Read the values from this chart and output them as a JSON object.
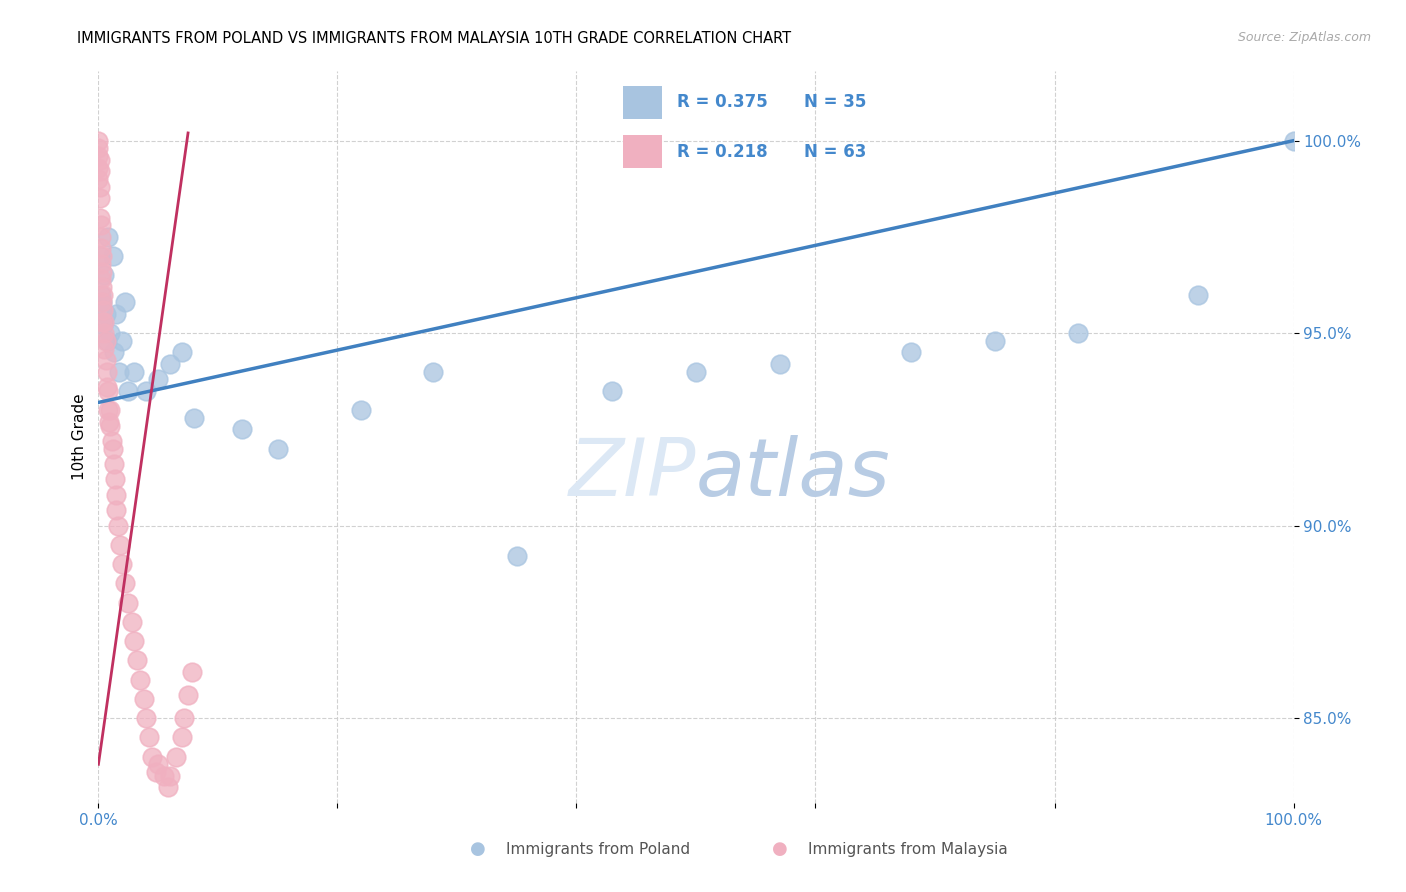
{
  "title": "IMMIGRANTS FROM POLAND VS IMMIGRANTS FROM MALAYSIA 10TH GRADE CORRELATION CHART",
  "source": "Source: ZipAtlas.com",
  "ylabel": "10th Grade",
  "blue_color": "#a8c4e0",
  "pink_color": "#f0b0c0",
  "blue_line_color": "#4080c0",
  "pink_line_color": "#c03060",
  "legend_blue_R": "R = 0.375",
  "legend_blue_N": "N = 35",
  "legend_pink_R": "R = 0.218",
  "legend_pink_N": "N = 63",
  "legend_label_blue": "Immigrants from Poland",
  "legend_label_pink": "Immigrants from Malaysia",
  "x_range": [
    0.0,
    1.0
  ],
  "y_range": [
    0.828,
    1.018
  ],
  "y_ticks": [
    0.85,
    0.9,
    0.95,
    1.0
  ],
  "y_tick_labels": [
    "85.0%",
    "90.0%",
    "95.0%",
    "100.0%"
  ],
  "blue_trend_x": [
    0.0,
    1.0
  ],
  "blue_trend_y": [
    0.932,
    1.0
  ],
  "pink_trend_x": [
    0.0,
    0.075
  ],
  "pink_trend_y": [
    0.838,
    1.002
  ],
  "poland_x": [
    0.001,
    0.002,
    0.003,
    0.004,
    0.005,
    0.006,
    0.007,
    0.008,
    0.01,
    0.012,
    0.013,
    0.015,
    0.017,
    0.02,
    0.022,
    0.025,
    0.03,
    0.04,
    0.05,
    0.06,
    0.07,
    0.08,
    0.12,
    0.15,
    0.22,
    0.28,
    0.35,
    0.43,
    0.5,
    0.57,
    0.68,
    0.75,
    0.82,
    0.92,
    1.0
  ],
  "poland_y": [
    0.97,
    0.96,
    0.958,
    0.952,
    0.965,
    0.955,
    0.948,
    0.975,
    0.95,
    0.97,
    0.945,
    0.955,
    0.94,
    0.948,
    0.958,
    0.935,
    0.94,
    0.935,
    0.938,
    0.942,
    0.945,
    0.928,
    0.925,
    0.92,
    0.93,
    0.94,
    0.892,
    0.935,
    0.94,
    0.942,
    0.945,
    0.948,
    0.95,
    0.96,
    1.0
  ],
  "malaysia_x": [
    0.0,
    0.0,
    0.0,
    0.0,
    0.0,
    0.001,
    0.001,
    0.001,
    0.001,
    0.001,
    0.002,
    0.002,
    0.002,
    0.002,
    0.002,
    0.003,
    0.003,
    0.003,
    0.003,
    0.003,
    0.004,
    0.004,
    0.005,
    0.005,
    0.005,
    0.006,
    0.006,
    0.007,
    0.007,
    0.008,
    0.008,
    0.009,
    0.01,
    0.01,
    0.011,
    0.012,
    0.013,
    0.014,
    0.015,
    0.015,
    0.016,
    0.018,
    0.02,
    0.022,
    0.025,
    0.028,
    0.03,
    0.032,
    0.035,
    0.038,
    0.04,
    0.042,
    0.045,
    0.048,
    0.05,
    0.055,
    0.058,
    0.06,
    0.065,
    0.07,
    0.072,
    0.075,
    0.078
  ],
  "malaysia_y": [
    1.0,
    0.998,
    0.996,
    0.993,
    0.99,
    0.995,
    0.992,
    0.988,
    0.985,
    0.98,
    0.978,
    0.975,
    0.972,
    0.968,
    0.964,
    0.97,
    0.966,
    0.962,
    0.958,
    0.953,
    0.96,
    0.956,
    0.953,
    0.95,
    0.946,
    0.948,
    0.943,
    0.94,
    0.936,
    0.935,
    0.93,
    0.927,
    0.93,
    0.926,
    0.922,
    0.92,
    0.916,
    0.912,
    0.908,
    0.904,
    0.9,
    0.895,
    0.89,
    0.885,
    0.88,
    0.875,
    0.87,
    0.865,
    0.86,
    0.855,
    0.85,
    0.845,
    0.84,
    0.836,
    0.838,
    0.835,
    0.832,
    0.835,
    0.84,
    0.845,
    0.85,
    0.856,
    0.862
  ]
}
